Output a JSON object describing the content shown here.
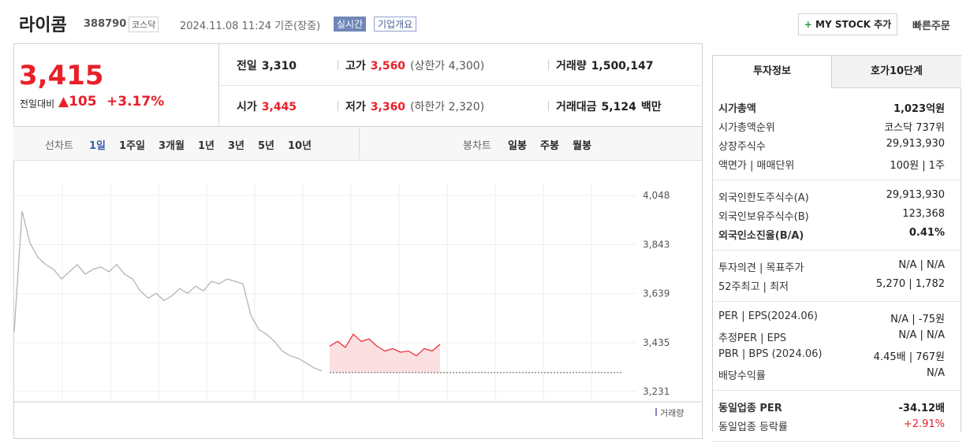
{
  "header": {
    "name": "라이콤",
    "code": "388790",
    "market": "코스닥",
    "datetime": "2024.11.08 11:24 기준(장중)",
    "realtime": "실시간",
    "company_info": "기업개요",
    "my_stock": "MY STOCK 추가",
    "quick_order": "빠른주문"
  },
  "price": {
    "current": "3,415",
    "change_label": "전일대비",
    "change": "105",
    "change_rate": "+3.17%"
  },
  "quote": {
    "rows": [
      [
        [
          "전일",
          "3,310"
        ],
        [
          "고가",
          "3,560",
          "(상한가 4,300)"
        ],
        [
          "거래량",
          "1,500,147"
        ]
      ],
      [
        [
          "시가",
          "3,445"
        ],
        [
          "저가",
          "3,360",
          "(하한가 2,320)"
        ],
        [
          "거래대금",
          "5,124",
          "백만"
        ]
      ]
    ]
  },
  "tabs": {
    "line_label": "선차트",
    "line": [
      "1일",
      "1주일",
      "3개월",
      "1년",
      "3년",
      "5년",
      "10년"
    ],
    "candle_label": "봉차트",
    "candle": [
      "일봉",
      "주봉",
      "월봉"
    ]
  },
  "chart": {
    "type": "line",
    "ylim": [
      3231,
      4048
    ],
    "yticks": [
      {
        "value": 3231,
        "label": "3,231"
      },
      {
        "value": 3435,
        "label": "3,435"
      },
      {
        "value": 3639,
        "label": "3,639"
      },
      {
        "value": 3843,
        "label": "3,843"
      },
      {
        "value": 4048,
        "label": "4,048"
      }
    ],
    "reference": 3310,
    "series": [
      {
        "color": "#b4b4b4",
        "values": [
          3480,
          3982,
          3850,
          3790,
          3760,
          3740,
          3700,
          3730,
          3760,
          3720,
          3740,
          3750,
          3730,
          3760,
          3720,
          3700,
          3650,
          3620,
          3640,
          3610,
          3630,
          3660,
          3640,
          3670,
          3650,
          3690,
          3680,
          3700,
          3690,
          3680,
          3550,
          3490,
          3470,
          3440,
          3400,
          3380,
          3370,
          3350,
          3330,
          3317,
          null,
          null,
          null,
          null,
          null,
          null,
          null,
          null,
          null,
          null,
          null,
          null,
          null,
          null,
          null
        ]
      },
      {
        "color": "#f0303a",
        "values": [
          null,
          null,
          null,
          null,
          null,
          null,
          null,
          null,
          null,
          null,
          null,
          null,
          null,
          null,
          null,
          null,
          null,
          null,
          null,
          null,
          null,
          null,
          null,
          null,
          null,
          null,
          null,
          null,
          null,
          null,
          null,
          null,
          null,
          null,
          null,
          null,
          null,
          null,
          null,
          null,
          3420,
          3440,
          3415,
          3470,
          3440,
          3450,
          3420,
          3400,
          3410,
          3395,
          3400,
          3380,
          3410,
          3400,
          3428
        ]
      }
    ],
    "volume_label": "거래량"
  },
  "panel": {
    "tabs": [
      "투자정보",
      "호가10단계"
    ],
    "groups": [
      [
        [
          "시가총액",
          "1,023억원"
        ],
        [
          "시가총액순위",
          "코스닥 737위"
        ],
        [
          "상장주식수",
          "29,913,930"
        ],
        [
          "액면가 | 매매단위",
          "100원 | 1주"
        ]
      ],
      [
        [
          "외국인한도주식수(A)",
          "29,913,930"
        ],
        [
          "외국인보유주식수(B)",
          "123,368"
        ],
        [
          "외국인소진율(B/A)",
          "0.41%"
        ]
      ],
      [
        [
          "투자의견 | 목표주가",
          "N/A | N/A"
        ],
        [
          "52주최고 | 최저",
          "5,270 | 1,782"
        ]
      ],
      [
        [
          "PER | EPS(2024.06)",
          "N/A | -75원"
        ],
        [
          "추정PER | EPS",
          "N/A | N/A"
        ],
        [
          "PBR | BPS (2024.06)",
          "4.45배 | 767원"
        ],
        [
          "배당수익률",
          "N/A"
        ]
      ],
      [
        [
          "동일업종 PER",
          "-34.12배"
        ],
        [
          "동일업종 등락률",
          "+2.91%"
        ]
      ]
    ]
  }
}
